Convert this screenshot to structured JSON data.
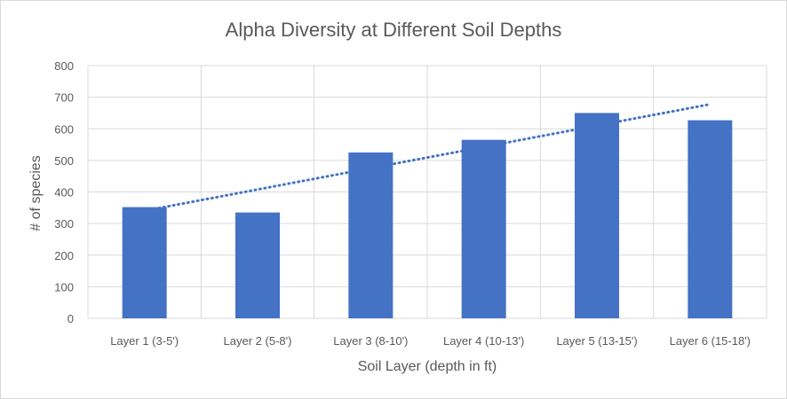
{
  "chart_data": {
    "type": "bar",
    "title": "Alpha Diversity at Different Soil Depths",
    "xlabel": "Soil Layer (depth in ft)",
    "ylabel": "# of species",
    "categories": [
      "Layer 1 (3-5')",
      "Layer 2 (5-8')",
      "Layer 3 (8-10')",
      "Layer 4 (10-13')",
      "Layer 5 (13-15')",
      "Layer 6 (15-18')"
    ],
    "values": [
      352,
      335,
      525,
      565,
      650,
      627
    ],
    "ylim": [
      0,
      800
    ],
    "yticks": [
      0,
      100,
      200,
      300,
      400,
      500,
      600,
      700,
      800
    ],
    "grid": true,
    "legend": "none",
    "trendline": {
      "type": "linear",
      "style": "dotted"
    },
    "colors": {
      "bar": "#4472C4",
      "trendline": "#4472C4",
      "grid": "#d9d9d9",
      "text": "#595959"
    }
  }
}
